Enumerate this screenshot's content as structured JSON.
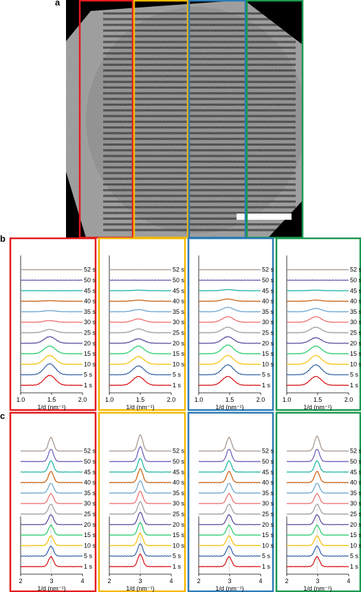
{
  "panels": {
    "a": "a",
    "b": "b",
    "c": "c"
  },
  "time_labels": [
    "1 s",
    "5 s",
    "10 s",
    "15 s",
    "20 s",
    "25 s",
    "30 s",
    "35 s",
    "40 s",
    "45 s",
    "50 s",
    "52 s"
  ],
  "series_colors": [
    "#d7191c",
    "#3a66a8",
    "#f2c40f",
    "#2ecc71",
    "#5a4e9e",
    "#9e9e9e",
    "#ef6f6f",
    "#6fa7cf",
    "#c9661a",
    "#22b3a3",
    "#6f5fb8",
    "#a8988e"
  ],
  "region_colors": [
    "#e31a1c",
    "#f5b800",
    "#2c7bb6",
    "#1a9850"
  ],
  "tem": {
    "background": "#000000",
    "scale_bar_color": "#ffffff",
    "region_count": 4
  },
  "chart_data": [
    {
      "type": "line",
      "panel": "b",
      "region": 1,
      "border_color": "#e31a1c",
      "xlabel": "1/d (nm⁻¹)",
      "xlim": [
        1.0,
        2.0
      ],
      "xticks": [
        "1.0",
        "1.5",
        "2.0"
      ],
      "peak_position": 1.47,
      "series": [
        {
          "name": "1 s",
          "peak": 0.9
        },
        {
          "name": "5 s",
          "peak": 1.0
        },
        {
          "name": "10 s",
          "peak": 0.8
        },
        {
          "name": "15 s",
          "peak": 0.7
        },
        {
          "name": "20 s",
          "peak": 0.6
        },
        {
          "name": "25 s",
          "peak": 0.3
        },
        {
          "name": "30 s",
          "peak": 0.15
        },
        {
          "name": "35 s",
          "peak": 0.1
        },
        {
          "name": "40 s",
          "peak": 0.05
        },
        {
          "name": "45 s",
          "peak": 0.0
        },
        {
          "name": "50 s",
          "peak": 0.0
        },
        {
          "name": "52 s",
          "peak": 0.0
        }
      ]
    },
    {
      "type": "line",
      "panel": "b",
      "region": 2,
      "border_color": "#f5b800",
      "xlabel": "1/d (nm⁻¹)",
      "xlim": [
        1.0,
        2.0
      ],
      "xticks": [
        "1.0",
        "1.5",
        "2.0"
      ],
      "peak_position": 1.47,
      "series": [
        {
          "name": "1 s",
          "peak": 0.8
        },
        {
          "name": "5 s",
          "peak": 0.8
        },
        {
          "name": "10 s",
          "peak": 0.7
        },
        {
          "name": "15 s",
          "peak": 0.7
        },
        {
          "name": "20 s",
          "peak": 0.4
        },
        {
          "name": "25 s",
          "peak": 0.35
        },
        {
          "name": "30 s",
          "peak": 0.3
        },
        {
          "name": "35 s",
          "peak": 0.2
        },
        {
          "name": "40 s",
          "peak": 0.1
        },
        {
          "name": "45 s",
          "peak": 0.05
        },
        {
          "name": "50 s",
          "peak": 0.0
        },
        {
          "name": "52 s",
          "peak": 0.0
        }
      ]
    },
    {
      "type": "line",
      "panel": "b",
      "region": 3,
      "border_color": "#2c7bb6",
      "xlabel": "1/d (nm⁻¹)",
      "xlim": [
        1.0,
        2.0
      ],
      "xticks": [
        "1.0",
        "1.5",
        "2.0"
      ],
      "peak_position": 1.47,
      "series": [
        {
          "name": "1 s",
          "peak": 0.8
        },
        {
          "name": "5 s",
          "peak": 0.9
        },
        {
          "name": "10 s",
          "peak": 0.8
        },
        {
          "name": "15 s",
          "peak": 0.8
        },
        {
          "name": "20 s",
          "peak": 0.6
        },
        {
          "name": "25 s",
          "peak": 0.5
        },
        {
          "name": "30 s",
          "peak": 0.5
        },
        {
          "name": "35 s",
          "peak": 0.4
        },
        {
          "name": "40 s",
          "peak": 0.2
        },
        {
          "name": "45 s",
          "peak": 0.1
        },
        {
          "name": "50 s",
          "peak": 0.0
        },
        {
          "name": "52 s",
          "peak": 0.0
        }
      ]
    },
    {
      "type": "line",
      "panel": "b",
      "region": 4,
      "border_color": "#1a9850",
      "xlabel": "1/d (nm⁻¹)",
      "xlim": [
        1.0,
        2.0
      ],
      "xticks": [
        "1.0",
        "1.5",
        "2.0"
      ],
      "peak_position": 1.47,
      "series": [
        {
          "name": "1 s",
          "peak": 0.8
        },
        {
          "name": "5 s",
          "peak": 0.9
        },
        {
          "name": "10 s",
          "peak": 0.8
        },
        {
          "name": "15 s",
          "peak": 0.7
        },
        {
          "name": "20 s",
          "peak": 0.5
        },
        {
          "name": "25 s",
          "peak": 0.5
        },
        {
          "name": "30 s",
          "peak": 0.5
        },
        {
          "name": "35 s",
          "peak": 0.3
        },
        {
          "name": "40 s",
          "peak": 0.1
        },
        {
          "name": "45 s",
          "peak": 0.05
        },
        {
          "name": "50 s",
          "peak": 0.0
        },
        {
          "name": "52 s",
          "peak": 0.0
        }
      ]
    },
    {
      "type": "line",
      "panel": "c",
      "region": 1,
      "border_color": "#e31a1c",
      "xlabel": "1/d (nm⁻¹)",
      "xlim": [
        2,
        4
      ],
      "xticks": [
        "2",
        "3",
        "4"
      ],
      "peak_position": 2.98,
      "series": [
        {
          "name": "1 s",
          "peak": 0.8
        },
        {
          "name": "5 s",
          "peak": 0.8
        },
        {
          "name": "10 s",
          "peak": 0.8
        },
        {
          "name": "15 s",
          "peak": 0.8
        },
        {
          "name": "20 s",
          "peak": 0.8
        },
        {
          "name": "25 s",
          "peak": 0.8
        },
        {
          "name": "30 s",
          "peak": 0.8
        },
        {
          "name": "35 s",
          "peak": 0.8
        },
        {
          "name": "40 s",
          "peak": 0.9
        },
        {
          "name": "45 s",
          "peak": 0.9
        },
        {
          "name": "50 s",
          "peak": 1.0
        },
        {
          "name": "52 s",
          "peak": 1.1
        }
      ]
    },
    {
      "type": "line",
      "panel": "c",
      "region": 2,
      "border_color": "#f5b800",
      "xlabel": "1/d (nm⁻¹)",
      "xlim": [
        2,
        4
      ],
      "xticks": [
        "2",
        "3",
        "4"
      ],
      "peak_position": 3.0,
      "series": [
        {
          "name": "1 s",
          "peak": 1.0
        },
        {
          "name": "5 s",
          "peak": 1.0
        },
        {
          "name": "10 s",
          "peak": 1.0
        },
        {
          "name": "15 s",
          "peak": 1.0
        },
        {
          "name": "20 s",
          "peak": 1.0
        },
        {
          "name": "25 s",
          "peak": 1.0
        },
        {
          "name": "30 s",
          "peak": 1.0
        },
        {
          "name": "35 s",
          "peak": 1.0
        },
        {
          "name": "40 s",
          "peak": 1.1
        },
        {
          "name": "45 s",
          "peak": 1.1
        },
        {
          "name": "50 s",
          "peak": 1.2
        },
        {
          "name": "52 s",
          "peak": 1.3
        }
      ]
    },
    {
      "type": "line",
      "panel": "c",
      "region": 3,
      "border_color": "#2c7bb6",
      "xlabel": "1/d (nm⁻¹)",
      "xlim": [
        2,
        4
      ],
      "xticks": [
        "2",
        "3",
        "4"
      ],
      "peak_position": 2.98,
      "series": [
        {
          "name": "1 s",
          "peak": 0.8
        },
        {
          "name": "5 s",
          "peak": 0.8
        },
        {
          "name": "10 s",
          "peak": 0.8
        },
        {
          "name": "15 s",
          "peak": 0.8
        },
        {
          "name": "20 s",
          "peak": 0.8
        },
        {
          "name": "25 s",
          "peak": 0.8
        },
        {
          "name": "30 s",
          "peak": 0.8
        },
        {
          "name": "35 s",
          "peak": 0.8
        },
        {
          "name": "40 s",
          "peak": 0.9
        },
        {
          "name": "45 s",
          "peak": 0.9
        },
        {
          "name": "50 s",
          "peak": 1.0
        },
        {
          "name": "52 s",
          "peak": 1.1
        }
      ]
    },
    {
      "type": "line",
      "panel": "c",
      "region": 4,
      "border_color": "#1a9850",
      "xlabel": "1/d (nm⁻¹)",
      "xlim": [
        2,
        4
      ],
      "xticks": [
        "2",
        "3",
        "4"
      ],
      "peak_position": 2.98,
      "series": [
        {
          "name": "1 s",
          "peak": 0.8
        },
        {
          "name": "5 s",
          "peak": 0.8
        },
        {
          "name": "10 s",
          "peak": 0.8
        },
        {
          "name": "15 s",
          "peak": 0.8
        },
        {
          "name": "20 s",
          "peak": 0.8
        },
        {
          "name": "25 s",
          "peak": 0.8
        },
        {
          "name": "30 s",
          "peak": 0.8
        },
        {
          "name": "35 s",
          "peak": 0.8
        },
        {
          "name": "40 s",
          "peak": 0.9
        },
        {
          "name": "45 s",
          "peak": 0.9
        },
        {
          "name": "50 s",
          "peak": 1.0
        },
        {
          "name": "52 s",
          "peak": 1.2
        }
      ]
    }
  ]
}
